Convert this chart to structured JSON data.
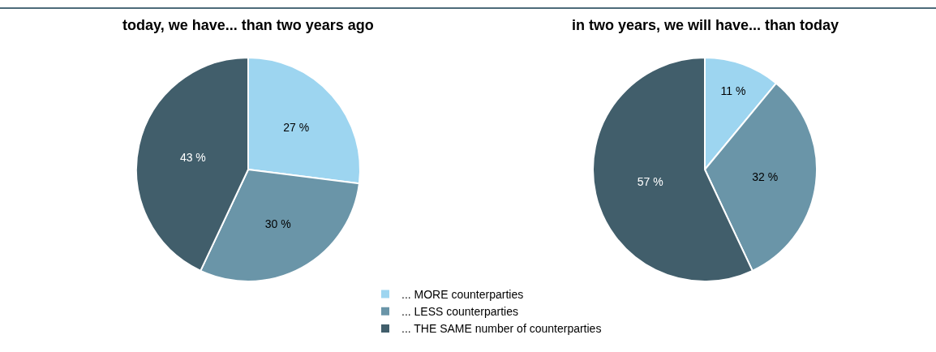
{
  "chart_data": [
    {
      "type": "pie",
      "title": "today, we have... than two years ago",
      "categories": [
        "... MORE counterparties",
        "... LESS counterparties",
        "... THE SAME number of counterparties"
      ],
      "values": [
        27,
        30,
        43
      ],
      "colors": [
        "#9dd5f0",
        "#6a95a8",
        "#415e6b"
      ],
      "value_labels": [
        "27 %",
        "30 %",
        "43 %"
      ],
      "legend": "bottom"
    },
    {
      "type": "pie",
      "title": "in two years, we will have... than today",
      "categories": [
        null,
        null,
        null
      ],
      "values": [
        11,
        32,
        57
      ],
      "colors": [
        "#9dd5f0",
        "#6a95a8",
        "#415e6b"
      ],
      "value_labels": [
        "11 %",
        "32 %",
        "57 %"
      ],
      "legend": false
    }
  ]
}
